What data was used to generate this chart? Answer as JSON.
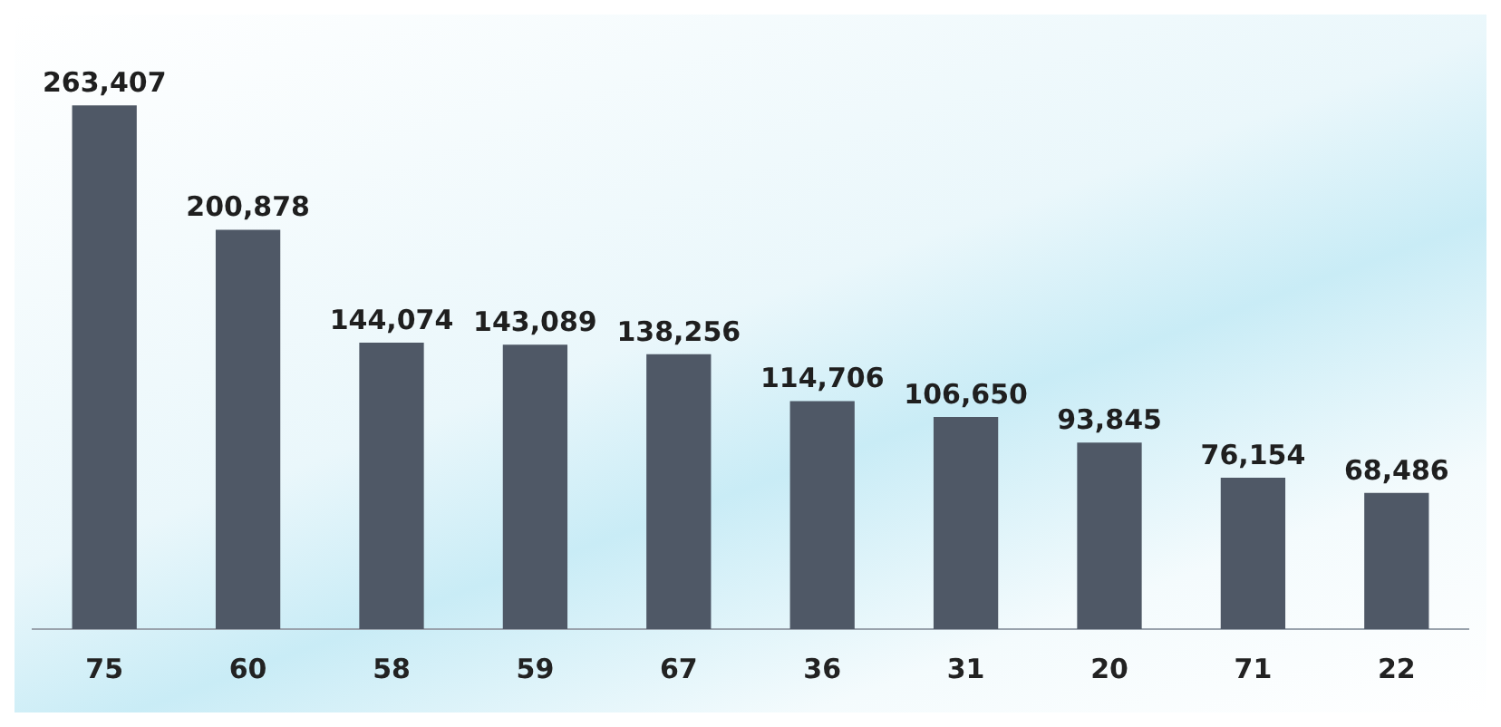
{
  "chart_data": {
    "type": "bar",
    "categories": [
      "75",
      "60",
      "58",
      "59",
      "67",
      "36",
      "31",
      "20",
      "71",
      "22"
    ],
    "values": [
      263407,
      200878,
      144074,
      143089,
      138256,
      114706,
      106650,
      93845,
      76154,
      68486
    ],
    "color": "#4f5866",
    "value_labels": [
      "263,407",
      "200,878",
      "144,074",
      "143,089",
      "138,256",
      "114,706",
      "106,650",
      "93,845",
      "76,154",
      "68,486"
    ],
    "tick_labels": "x",
    "grid": false
  }
}
